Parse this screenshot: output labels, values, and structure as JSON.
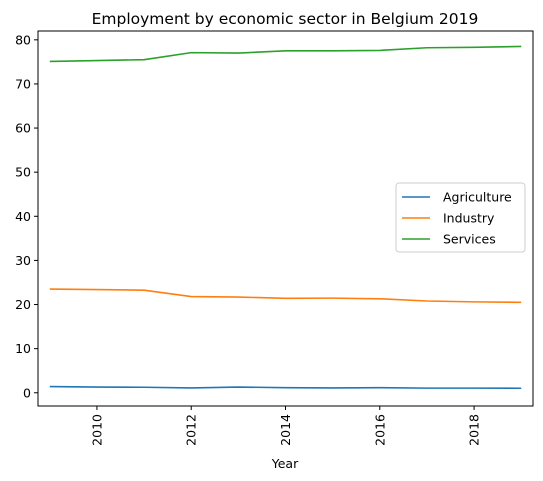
{
  "chart_data": {
    "type": "line",
    "title": "Employment by economic sector in Belgium 2019",
    "xlabel": "Year",
    "ylabel": "",
    "x": [
      2009,
      2010,
      2011,
      2012,
      2013,
      2014,
      2015,
      2016,
      2017,
      2018,
      2019
    ],
    "xlim": [
      2008.75,
      2019.25
    ],
    "ylim": [
      -3,
      82
    ],
    "xticks": [
      2010,
      2012,
      2014,
      2016,
      2018
    ],
    "yticks": [
      0,
      10,
      20,
      30,
      40,
      50,
      60,
      70,
      80
    ],
    "grid": false,
    "legend_position": "center-right",
    "series": [
      {
        "name": "Agriculture",
        "color": "#1f77b4",
        "values": [
          1.4,
          1.3,
          1.25,
          1.1,
          1.3,
          1.15,
          1.1,
          1.15,
          1.05,
          1.05,
          1.02
        ]
      },
      {
        "name": "Industry",
        "color": "#ff7f0e",
        "values": [
          23.5,
          23.4,
          23.25,
          21.8,
          21.7,
          21.4,
          21.45,
          21.3,
          20.8,
          20.6,
          20.5
        ]
      },
      {
        "name": "Services",
        "color": "#2ca02c",
        "values": [
          75.1,
          75.3,
          75.5,
          77.1,
          77.0,
          77.5,
          77.5,
          77.6,
          78.2,
          78.3,
          78.5
        ]
      }
    ]
  }
}
